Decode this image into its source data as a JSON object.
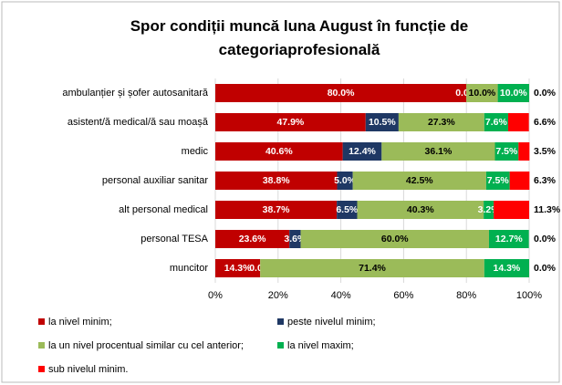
{
  "chart_data": {
    "type": "stacked_bar_horizontal",
    "title": "Spor condiții  muncă luna August în funcție de categoriaprofesională",
    "categories": [
      "ambulanțier  și șofer autosanitară",
      "asistent/ă medical/ă sau moașă",
      "medic",
      "personal auxiliar sanitar",
      "alt personal medical",
      "personal TESA",
      "muncitor"
    ],
    "series": [
      {
        "name": "la nivel minim;",
        "color": "#c00000",
        "values": [
          80.0,
          47.9,
          40.6,
          38.8,
          38.7,
          23.6,
          14.3
        ],
        "value_labels": [
          "80.0%",
          "47.9%",
          "40.6%",
          "38.8%",
          "38.7%",
          "23.6%",
          "14.3%"
        ]
      },
      {
        "name": "peste nivelul minim;",
        "color": "#1f3864",
        "values": [
          0.0,
          10.5,
          12.4,
          5.0,
          6.5,
          3.6,
          0.0
        ],
        "value_labels": [
          "0.0%",
          "10.5%",
          "12.4%",
          "5.0%",
          "6.5%",
          "3.6%",
          "0.0%"
        ]
      },
      {
        "name": "la un nivel procentual similar cu cel anterior;",
        "color": "#9bbb59",
        "values": [
          10.0,
          27.3,
          36.1,
          42.5,
          40.3,
          60.0,
          71.4
        ],
        "value_labels": [
          "10.0%",
          "27.3%",
          "36.1%",
          "42.5%",
          "40.3%",
          "60.0%",
          "71.4%"
        ]
      },
      {
        "name": "la nivel maxim;",
        "color": "#00b050",
        "values": [
          10.0,
          7.6,
          7.5,
          7.5,
          3.2,
          12.7,
          14.3
        ],
        "value_labels": [
          "10.0%",
          "7.6%",
          "7.5%",
          "7.5%",
          "3.2%",
          "12.7%",
          "14.3%"
        ]
      },
      {
        "name": "sub nivelul minim.",
        "color": "#ff0000",
        "values": [
          0.0,
          6.6,
          3.5,
          6.3,
          11.3,
          0.0,
          0.0
        ],
        "value_labels": [
          "0.0%",
          "6.6%",
          "3.5%",
          "6.3%",
          "11.3%",
          "0.0%",
          "0.0%"
        ]
      }
    ],
    "xlim": [
      0,
      100
    ],
    "xticks": [
      {
        "value": 0,
        "label": "0%"
      },
      {
        "value": 20,
        "label": "20%"
      },
      {
        "value": 40,
        "label": "40%"
      },
      {
        "value": 60,
        "label": "60%"
      },
      {
        "value": 80,
        "label": "80%"
      },
      {
        "value": 100,
        "label": "100%"
      }
    ]
  }
}
